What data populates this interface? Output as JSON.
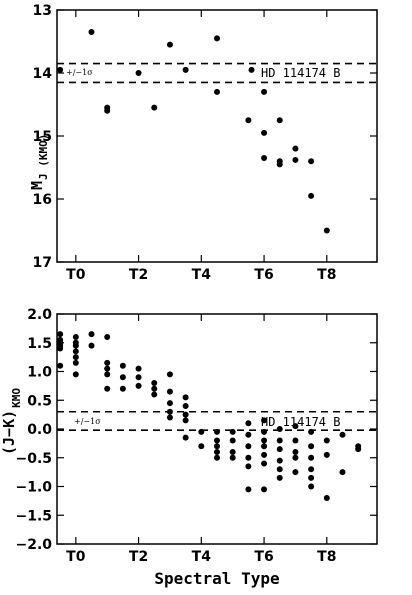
{
  "chart_data": [
    {
      "type": "scatter",
      "xlabel": "",
      "ylabel": "M_J (KMO)",
      "ylabel_main": "M",
      "ylabel_sub": "J (KMO)",
      "xlim": [
        -0.6,
        9.6
      ],
      "ylim": [
        17,
        13
      ],
      "y_inverted": true,
      "x_ticks": [
        {
          "v": 0,
          "label": "T0"
        },
        {
          "v": 2,
          "label": "T2"
        },
        {
          "v": 4,
          "label": "T4"
        },
        {
          "v": 6,
          "label": "T6"
        },
        {
          "v": 8,
          "label": "T8"
        }
      ],
      "y_ticks": [
        {
          "v": 13,
          "label": "13"
        },
        {
          "v": 14,
          "label": "14"
        },
        {
          "v": 15,
          "label": "15"
        },
        {
          "v": 16,
          "label": "16"
        },
        {
          "v": 17,
          "label": "17"
        }
      ],
      "object_label": "HD 114174 B",
      "sigma_label": "+/−1σ",
      "object_lines": [
        13.85,
        14.15
      ],
      "points": [
        [
          -0.5,
          13.95
        ],
        [
          0.5,
          13.35
        ],
        [
          1,
          14.55
        ],
        [
          1,
          14.6
        ],
        [
          2,
          14
        ],
        [
          2.5,
          14.55
        ],
        [
          3,
          13.55
        ],
        [
          3.5,
          13.95
        ],
        [
          4.5,
          13.45
        ],
        [
          4.5,
          14.3
        ],
        [
          5.5,
          14.75
        ],
        [
          5.6,
          13.95
        ],
        [
          6,
          14.3
        ],
        [
          6,
          14.95
        ],
        [
          6,
          15.35
        ],
        [
          6.5,
          14.75
        ],
        [
          6.5,
          15.4
        ],
        [
          6.5,
          15.45
        ],
        [
          7,
          15.2
        ],
        [
          7,
          15.38
        ],
        [
          7.5,
          15.4
        ],
        [
          7.5,
          15.95
        ],
        [
          8,
          16.5
        ]
      ]
    },
    {
      "type": "scatter",
      "xlabel": "Spectral Type",
      "ylabel": "(J−K) KMO",
      "ylabel_main": "(J−K)",
      "ylabel_sub": "KMO",
      "xlim": [
        -0.6,
        9.6
      ],
      "ylim": [
        -2.0,
        2.0
      ],
      "x_ticks": [
        {
          "v": 0,
          "label": "T0"
        },
        {
          "v": 2,
          "label": "T2"
        },
        {
          "v": 4,
          "label": "T4"
        },
        {
          "v": 6,
          "label": "T6"
        },
        {
          "v": 8,
          "label": "T8"
        }
      ],
      "y_ticks": [
        {
          "v": 2.0,
          "label": "2.0"
        },
        {
          "v": 1.5,
          "label": "1.5"
        },
        {
          "v": 1.0,
          "label": "1.0"
        },
        {
          "v": 0.5,
          "label": "0.5"
        },
        {
          "v": 0.0,
          "label": "0.0"
        },
        {
          "v": -0.5,
          "label": "−0.5"
        },
        {
          "v": -1.0,
          "label": "−1.0"
        },
        {
          "v": -1.5,
          "label": "−1.5"
        },
        {
          "v": -2.0,
          "label": "−2.0"
        }
      ],
      "object_label": "HD 114174 B",
      "sigma_label": "+/−1σ",
      "object_lines": [
        0.3,
        -0.02
      ],
      "points": [
        [
          -0.5,
          1.65
        ],
        [
          -0.5,
          1.55
        ],
        [
          -0.5,
          1.5
        ],
        [
          -0.5,
          1.45
        ],
        [
          -0.5,
          1.4
        ],
        [
          -0.5,
          1.1
        ],
        [
          0,
          1.6
        ],
        [
          0,
          1.5
        ],
        [
          0,
          1.45
        ],
        [
          0,
          1.35
        ],
        [
          0,
          1.25
        ],
        [
          0,
          1.15
        ],
        [
          0,
          0.95
        ],
        [
          0.5,
          1.65
        ],
        [
          0.5,
          1.45
        ],
        [
          1,
          1.6
        ],
        [
          1,
          1.15
        ],
        [
          1,
          1.05
        ],
        [
          1,
          0.95
        ],
        [
          1,
          0.7
        ],
        [
          1.5,
          1.1
        ],
        [
          1.5,
          0.9
        ],
        [
          1.5,
          0.7
        ],
        [
          2,
          1.05
        ],
        [
          2,
          0.9
        ],
        [
          2,
          0.75
        ],
        [
          2.5,
          0.8
        ],
        [
          2.5,
          0.7
        ],
        [
          2.5,
          0.6
        ],
        [
          3,
          0.95
        ],
        [
          3,
          0.65
        ],
        [
          3,
          0.45
        ],
        [
          3,
          0.3
        ],
        [
          3,
          0.2
        ],
        [
          3.5,
          0.55
        ],
        [
          3.5,
          0.4
        ],
        [
          3.5,
          0.25
        ],
        [
          3.5,
          0.15
        ],
        [
          3.5,
          -0.15
        ],
        [
          4,
          -0.05
        ],
        [
          4,
          -0.3
        ],
        [
          4.5,
          -0.05
        ],
        [
          4.5,
          -0.2
        ],
        [
          4.5,
          -0.3
        ],
        [
          4.5,
          -0.4
        ],
        [
          4.5,
          -0.5
        ],
        [
          5,
          -0.05
        ],
        [
          5,
          -0.2
        ],
        [
          5,
          -0.4
        ],
        [
          5,
          -0.5
        ],
        [
          5.5,
          0.1
        ],
        [
          5.5,
          -0.1
        ],
        [
          5.5,
          -0.3
        ],
        [
          5.5,
          -0.5
        ],
        [
          5.5,
          -0.65
        ],
        [
          5.5,
          -1.05
        ],
        [
          6,
          0.15
        ],
        [
          6,
          -0.05
        ],
        [
          6,
          -0.2
        ],
        [
          6,
          -0.3
        ],
        [
          6,
          -0.45
        ],
        [
          6,
          -0.6
        ],
        [
          6,
          -1.05
        ],
        [
          6.5,
          0.0
        ],
        [
          6.5,
          -0.2
        ],
        [
          6.5,
          -0.35
        ],
        [
          6.5,
          -0.55
        ],
        [
          6.5,
          -0.7
        ],
        [
          6.5,
          -0.85
        ],
        [
          7,
          0.05
        ],
        [
          7,
          -0.2
        ],
        [
          7,
          -0.4
        ],
        [
          7,
          -0.5
        ],
        [
          7,
          -0.75
        ],
        [
          7.5,
          -0.05
        ],
        [
          7.5,
          -0.3
        ],
        [
          7.5,
          -0.5
        ],
        [
          7.5,
          -0.7
        ],
        [
          7.5,
          -0.85
        ],
        [
          7.5,
          -1.0
        ],
        [
          8,
          -0.2
        ],
        [
          8,
          -0.45
        ],
        [
          8,
          -1.2
        ],
        [
          8.5,
          -0.1
        ],
        [
          8.5,
          -0.75
        ],
        [
          9,
          -0.3
        ],
        [
          9,
          -0.35
        ]
      ]
    }
  ]
}
